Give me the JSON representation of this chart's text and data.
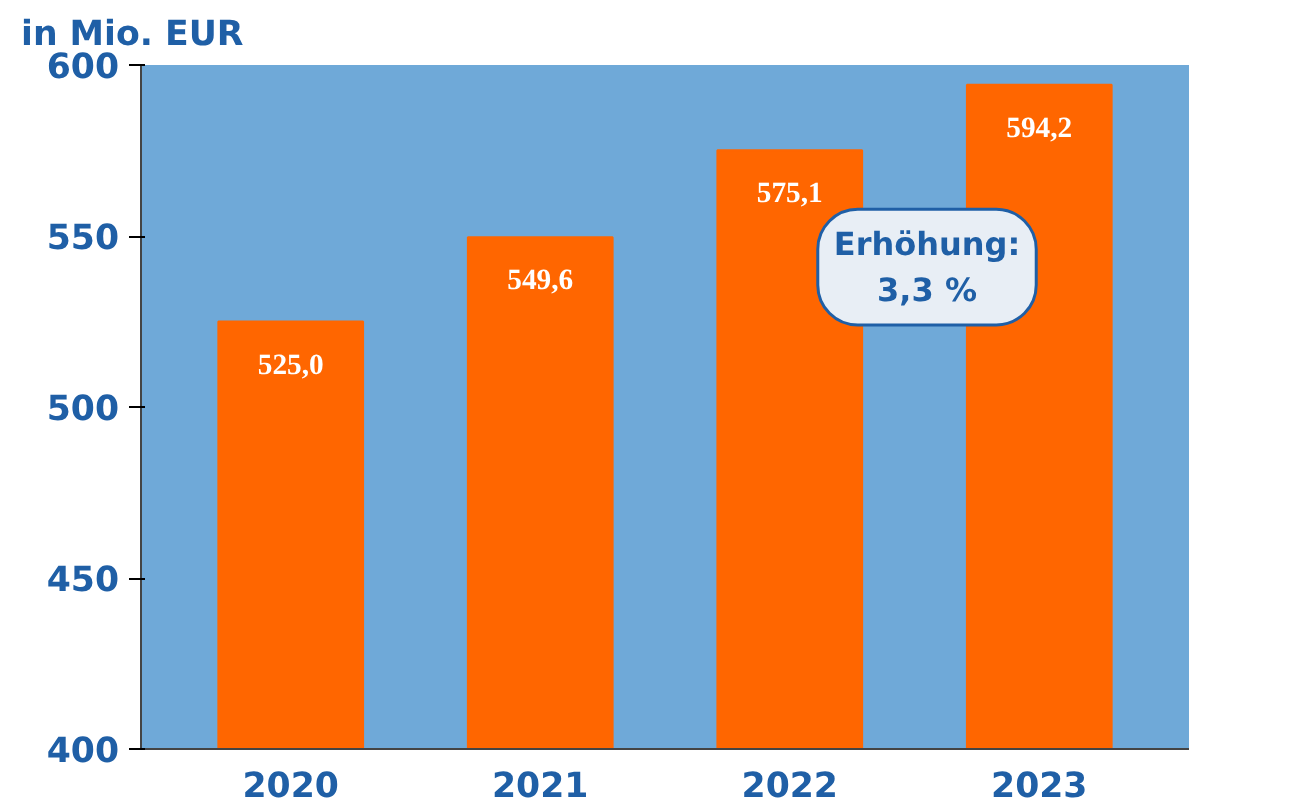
{
  "chart_data": {
    "type": "bar",
    "ylabel": "in Mio. EUR",
    "categories": [
      "2020",
      "2021",
      "2022",
      "2023"
    ],
    "values": [
      525.0,
      549.6,
      575.1,
      594.2
    ],
    "value_labels": [
      "525,0",
      "549,6",
      "575,1",
      "594,2"
    ],
    "color": "#ff6600",
    "ylim": [
      400,
      600
    ],
    "yticks": [
      400,
      450,
      500,
      550,
      600
    ],
    "annotations": [
      "Erhöhung:\n3,3 %"
    ]
  }
}
